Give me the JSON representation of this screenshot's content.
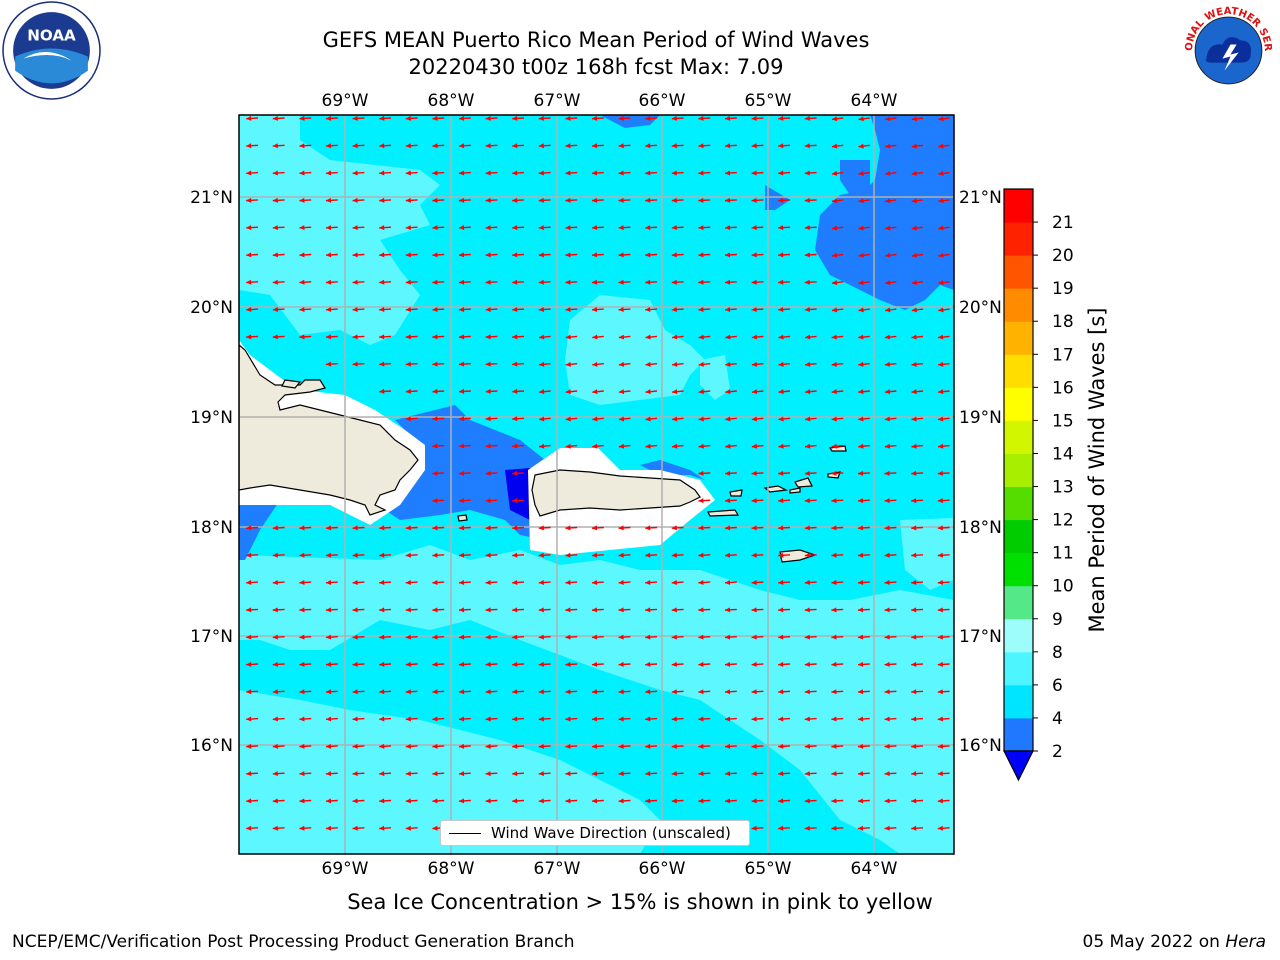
{
  "title_line1": "GEFS MEAN Puerto Rico Mean Period of Wind Waves",
  "title_line2": "20220430 t00z 168h fcst   Max: 7.09",
  "subtitle": "Sea Ice Concentration > 15% is shown in pink to yellow",
  "footer_left": "NCEP/EMC/Verification Post Processing Product Generation Branch",
  "footer_right_date": "05 May 2022 on",
  "footer_right_host": "Hera",
  "legend_label": "Wind Wave Direction (unscaled)",
  "colorbar": {
    "label": "Mean Period of Wind Waves [s]",
    "ticks": [
      "2",
      "4",
      "6",
      "8",
      "9",
      "10",
      "11",
      "12",
      "13",
      "14",
      "15",
      "16",
      "17",
      "18",
      "19",
      "20",
      "21"
    ],
    "colors": [
      "#1f78ff",
      "#00e5ff",
      "#4cf5ff",
      "#9dfdfb",
      "#55e888",
      "#00e000",
      "#00cc00",
      "#55dd00",
      "#a7ee00",
      "#d2f500",
      "#ffff00",
      "#ffdd00",
      "#ffb300",
      "#ff8c00",
      "#ff5500",
      "#ff2200",
      "#ff0000"
    ],
    "under_color": "#0000ff"
  },
  "map": {
    "lon_ticks": [
      "69°W",
      "68°W",
      "67°W",
      "66°W",
      "65°W",
      "64°W"
    ],
    "lat_ticks": [
      "21°N",
      "20°N",
      "19°N",
      "18°N",
      "17°N",
      "16°N"
    ],
    "background_color": "#00f0ff",
    "light_color": "#5cf7ff",
    "dark_color": "#1e7eff",
    "deep_color": "#0000ee",
    "land_color": "#efebdc",
    "arrow_color": "#ff0000"
  },
  "logos": {
    "left": "noaa-logo",
    "right": "nws-logo",
    "left_text": "NOAA",
    "right_text": "NATIONAL WEATHER SERVICE"
  }
}
